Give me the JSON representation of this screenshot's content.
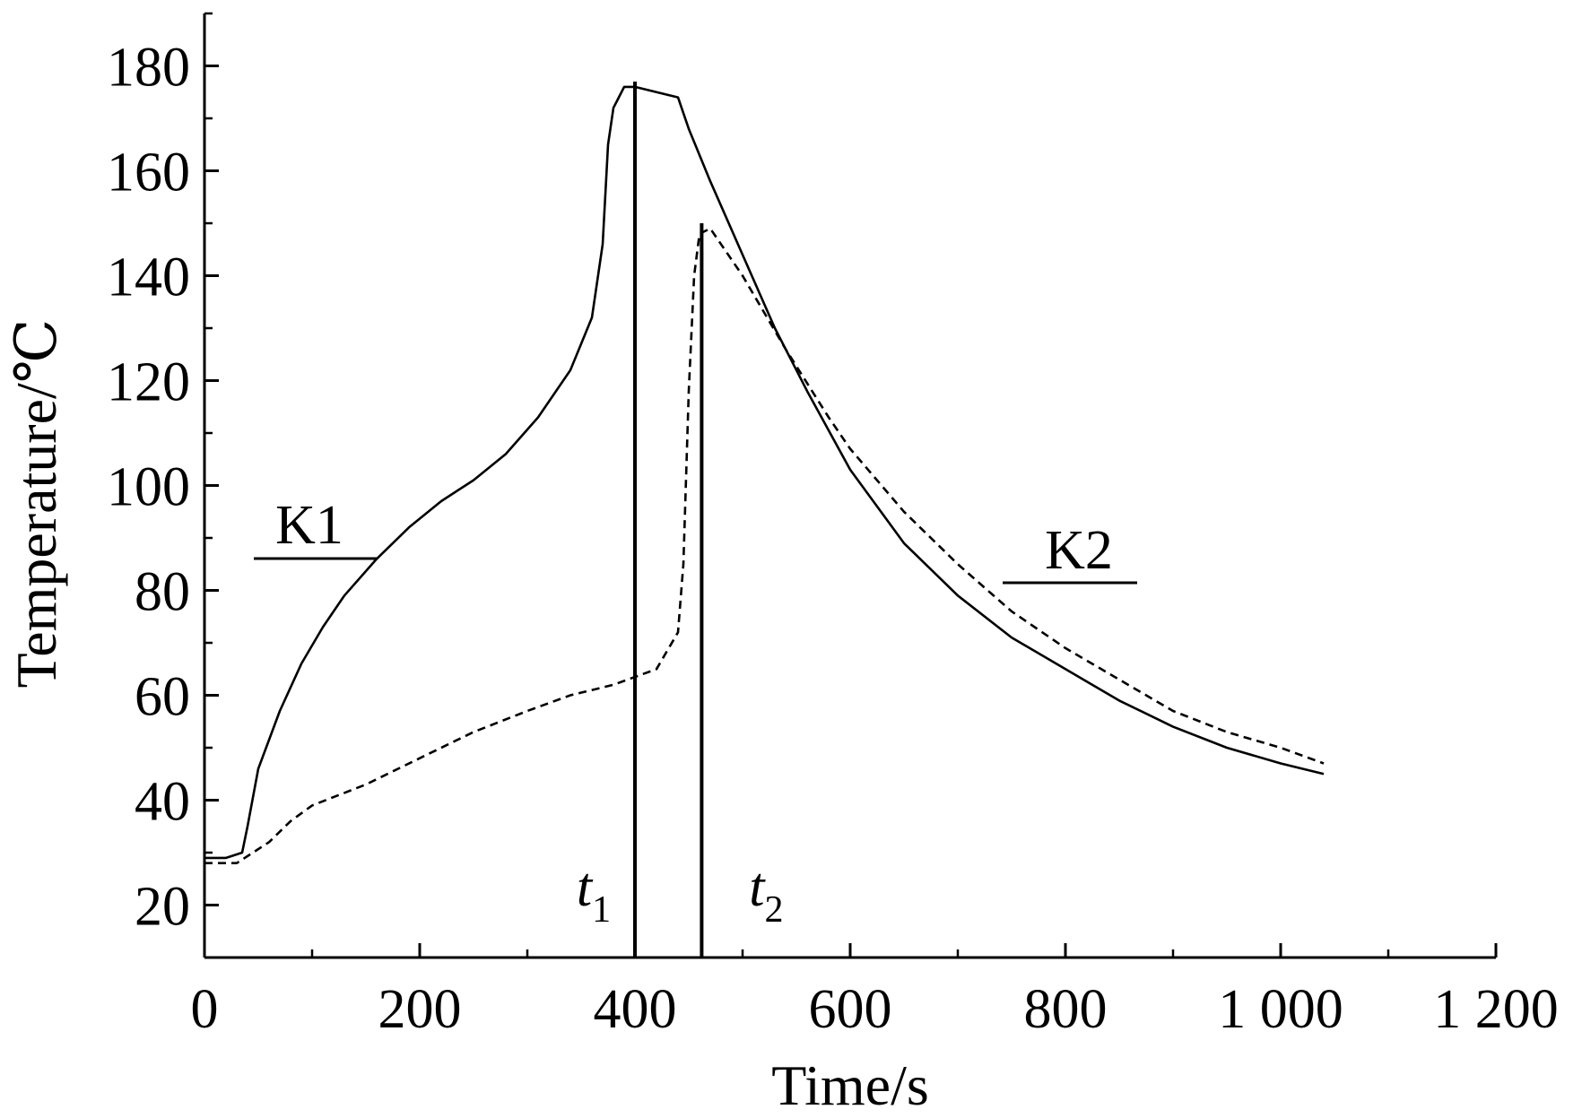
{
  "chart_data": {
    "type": "line",
    "xlabel": "Time/s",
    "ylabel": "Temperature/℃",
    "xlim": [
      0,
      1200
    ],
    "ylim": [
      10,
      190
    ],
    "x_ticks": [
      0,
      200,
      400,
      600,
      800,
      1000,
      1200
    ],
    "x_tick_labels": [
      "0",
      "200",
      "400",
      "600",
      "800",
      "1 000",
      "1 200"
    ],
    "y_ticks": [
      20,
      40,
      60,
      80,
      100,
      120,
      140,
      160,
      180
    ],
    "y_tick_labels": [
      "20",
      "40",
      "60",
      "80",
      "100",
      "120",
      "140",
      "160",
      "180"
    ],
    "grid": false,
    "series": [
      {
        "name": "K1",
        "style": "solid",
        "x": [
          0,
          20,
          35,
          40,
          50,
          70,
          90,
          110,
          130,
          160,
          190,
          220,
          250,
          280,
          310,
          340,
          360,
          370,
          375,
          380,
          385,
          390,
          400,
          420,
          440,
          450,
          470,
          500,
          530,
          560,
          600,
          650,
          700,
          750,
          800,
          850,
          900,
          950,
          1000,
          1040
        ],
        "values": [
          29,
          29,
          30,
          35,
          46,
          57,
          66,
          73,
          79,
          86,
          92,
          97,
          101,
          106,
          113,
          122,
          132,
          146,
          165,
          172,
          174,
          176,
          176,
          175,
          174,
          168,
          158,
          144,
          130,
          118,
          103,
          89,
          79,
          71,
          65,
          59,
          54,
          50,
          47,
          45
        ]
      },
      {
        "name": "K2",
        "style": "dashed",
        "x": [
          0,
          30,
          60,
          80,
          100,
          150,
          200,
          250,
          300,
          340,
          380,
          420,
          440,
          445,
          450,
          455,
          460,
          470,
          500,
          540,
          580,
          600,
          650,
          700,
          750,
          800,
          850,
          900,
          950,
          1000,
          1040
        ],
        "values": [
          28,
          28,
          32,
          36,
          39,
          43,
          48,
          53,
          57,
          60,
          62,
          65,
          72,
          85,
          118,
          140,
          148,
          149,
          140,
          126,
          113,
          107,
          95,
          85,
          76,
          69,
          63,
          57,
          53,
          50,
          47
        ]
      }
    ],
    "vlines": [
      {
        "label": "t",
        "subscript": "1",
        "x": 400,
        "y_top": 177
      },
      {
        "label": "t",
        "subscript": "2",
        "x": 462,
        "y_top": 150
      }
    ],
    "annotations": [
      {
        "text": "K1",
        "series": "K1"
      },
      {
        "text": "K2",
        "series": "K2"
      }
    ]
  }
}
